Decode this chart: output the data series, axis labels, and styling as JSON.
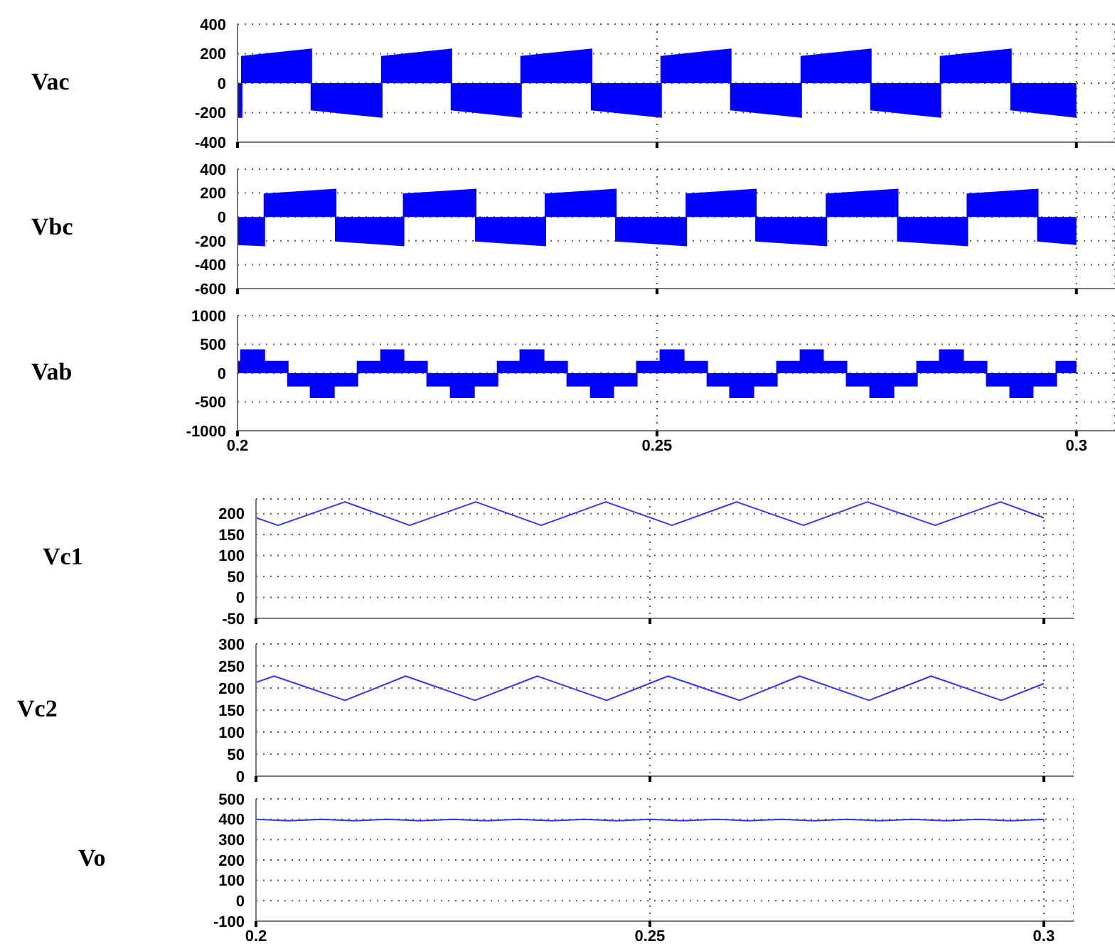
{
  "chart_data": [
    {
      "type": "area",
      "ylabel": "Vac",
      "xlim": [
        0.2,
        0.3046
      ],
      "xticks": [
        {
          "value": 0.2,
          "label": null
        },
        {
          "value": 0.25,
          "label": null
        },
        {
          "value": 0.3,
          "label": null
        }
      ],
      "ylim": [
        -400,
        400
      ],
      "yticks": [
        -400,
        -200,
        0,
        200,
        400
      ],
      "grid": true,
      "tick_labels": "y",
      "series": [
        {
          "color": "#0000ff",
          "x": [
            0.2,
            0.2005,
            0.2005,
            0.2088,
            0.2088,
            0.2172,
            0.2172,
            0.2255,
            0.2255,
            0.2338,
            0.2338,
            0.2422,
            0.2422,
            0.2505,
            0.2505,
            0.2588,
            0.2588,
            0.2672,
            0.2672,
            0.2755,
            0.2755,
            0.2838,
            0.2838,
            0.2922,
            0.2922,
            0.3
          ],
          "values": [
            -230,
            -230,
            180,
            230,
            -180,
            -230,
            180,
            230,
            -180,
            -230,
            180,
            230,
            -180,
            -230,
            180,
            230,
            -180,
            -230,
            180,
            230,
            -180,
            -230,
            180,
            230,
            -180,
            -230
          ]
        }
      ]
    },
    {
      "type": "area",
      "ylabel": "Vbc",
      "xlim": [
        0.2,
        0.3046
      ],
      "xticks": [
        {
          "value": 0.2,
          "label": null
        },
        {
          "value": 0.25,
          "label": null
        },
        {
          "value": 0.3,
          "label": null
        }
      ],
      "ylim": [
        -600,
        400
      ],
      "yticks": [
        -600,
        -400,
        -200,
        0,
        200,
        400
      ],
      "grid": true,
      "tick_labels": "y",
      "series": [
        {
          "color": "#0000ff",
          "x": [
            0.2,
            0.2032,
            0.2032,
            0.2117,
            0.2117,
            0.2198,
            0.2198,
            0.2284,
            0.2284,
            0.2367,
            0.2367,
            0.2451,
            0.2451,
            0.2535,
            0.2535,
            0.2618,
            0.2618,
            0.2702,
            0.2702,
            0.2787,
            0.2787,
            0.287,
            0.287,
            0.2954,
            0.2954,
            0.3
          ],
          "values": [
            -230,
            -240,
            190,
            230,
            -200,
            -240,
            190,
            230,
            -200,
            -240,
            190,
            230,
            -200,
            -240,
            190,
            230,
            -200,
            -240,
            190,
            230,
            -200,
            -240,
            190,
            230,
            -200,
            -230
          ]
        }
      ]
    },
    {
      "type": "area",
      "ylabel": "Vab",
      "xlim": [
        0.2,
        0.3046
      ],
      "xticks": [
        0.2,
        0.25,
        0.3
      ],
      "ylim": [
        -1000,
        1000
      ],
      "yticks": [
        -1000,
        -500,
        0,
        500,
        1000
      ],
      "grid": true,
      "series": [
        {
          "color": "#0000ff",
          "x": [
            0.2,
            0.2004,
            0.2004,
            0.2032,
            0.2032,
            0.206,
            0.206,
            0.2087,
            0.2087,
            0.2115,
            0.2115,
            0.2143,
            0.2143,
            0.2171,
            0.2171,
            0.2198,
            0.2198,
            0.2226,
            0.2226,
            0.2254,
            0.2254,
            0.2282,
            0.2282,
            0.231,
            0.231,
            0.2337,
            0.2337,
            0.2365,
            0.2365,
            0.2393,
            0.2393,
            0.2421,
            0.2421,
            0.2448,
            0.2448,
            0.2476,
            0.2476,
            0.2504,
            0.2504,
            0.2532,
            0.2532,
            0.256,
            0.256,
            0.2587,
            0.2587,
            0.2615,
            0.2615,
            0.2643,
            0.2643,
            0.2671,
            0.2671,
            0.2698,
            0.2698,
            0.2726,
            0.2726,
            0.2754,
            0.2754,
            0.2782,
            0.2782,
            0.281,
            0.281,
            0.2837,
            0.2837,
            0.2865,
            0.2865,
            0.2893,
            0.2893,
            0.2921,
            0.2921,
            0.2948,
            0.2948,
            0.2976,
            0.2976,
            0.3
          ],
          "values": [
            200,
            200,
            400,
            400,
            200,
            200,
            -220,
            -220,
            -420,
            -420,
            -220,
            -220,
            200,
            200,
            400,
            400,
            200,
            200,
            -220,
            -220,
            -420,
            -420,
            -220,
            -220,
            200,
            200,
            400,
            400,
            200,
            200,
            -220,
            -220,
            -420,
            -420,
            -220,
            -220,
            200,
            200,
            400,
            400,
            200,
            200,
            -220,
            -220,
            -420,
            -420,
            -220,
            -220,
            200,
            200,
            400,
            400,
            200,
            200,
            -220,
            -220,
            -420,
            -420,
            -220,
            -220,
            200,
            200,
            400,
            400,
            200,
            200,
            -220,
            -220,
            -420,
            -420,
            -220,
            -220,
            200,
            200
          ]
        }
      ]
    },
    {
      "type": "line",
      "ylabel": "Vc1",
      "xlim": [
        0.2,
        0.3038
      ],
      "xticks": [
        {
          "value": 0.2,
          "label": null
        },
        {
          "value": 0.25,
          "label": null
        },
        {
          "value": 0.3,
          "label": null
        }
      ],
      "ylim": [
        -50,
        235
      ],
      "yticks": [
        -50,
        0,
        50,
        100,
        150,
        200
      ],
      "grid": true,
      "tick_labels": "y",
      "series": [
        {
          "color": "#3333ff",
          "x": [
            0.2,
            0.2028,
            0.2113,
            0.2195,
            0.2279,
            0.2362,
            0.2444,
            0.2528,
            0.261,
            0.2695,
            0.2776,
            0.2862,
            0.2945,
            0.3
          ],
          "values": [
            190,
            172,
            228,
            172,
            228,
            172,
            228,
            172,
            228,
            172,
            228,
            172,
            228,
            190
          ]
        }
      ]
    },
    {
      "type": "line",
      "ylabel": "Vc2",
      "xlim": [
        0.2,
        0.3038
      ],
      "xticks": [
        {
          "value": 0.2,
          "label": null
        },
        {
          "value": 0.25,
          "label": null
        },
        {
          "value": 0.3,
          "label": null
        }
      ],
      "ylim": [
        0,
        300
      ],
      "yticks": [
        0,
        50,
        100,
        150,
        200,
        250,
        300
      ],
      "grid": true,
      "tick_labels": "y",
      "series": [
        {
          "color": "#3333ff",
          "x": [
            0.2,
            0.2023,
            0.2113,
            0.219,
            0.2278,
            0.2357,
            0.2445,
            0.2523,
            0.2614,
            0.269,
            0.2778,
            0.2857,
            0.2946,
            0.3
          ],
          "values": [
            213,
            227,
            172,
            227,
            172,
            227,
            172,
            227,
            172,
            227,
            172,
            227,
            172,
            210
          ]
        }
      ]
    },
    {
      "type": "line",
      "ylabel": "Vo",
      "xlim": [
        0.2,
        0.3038
      ],
      "xticks": [
        0.2,
        0.25,
        0.3
      ],
      "ylim": [
        -100,
        500
      ],
      "yticks": [
        -100,
        0,
        100,
        200,
        300,
        400,
        500
      ],
      "grid": true,
      "series": [
        {
          "color": "#3333ff",
          "x": [
            0.2,
            0.2042,
            0.2083,
            0.2125,
            0.2167,
            0.2208,
            0.225,
            0.2292,
            0.2333,
            0.2375,
            0.2417,
            0.2458,
            0.25,
            0.2542,
            0.2583,
            0.2625,
            0.2667,
            0.2708,
            0.275,
            0.2792,
            0.2833,
            0.2875,
            0.2917,
            0.2958,
            0.3
          ],
          "values": [
            400,
            393,
            400,
            393,
            400,
            393,
            400,
            393,
            400,
            393,
            400,
            393,
            400,
            393,
            400,
            393,
            400,
            393,
            400,
            393,
            400,
            393,
            400,
            393,
            400
          ]
        }
      ]
    }
  ]
}
